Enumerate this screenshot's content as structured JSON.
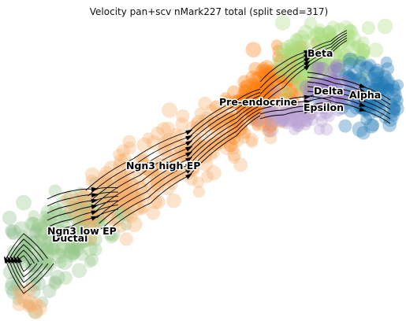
{
  "chart_data": {
    "type": "scatter",
    "title": "Velocity pan+scv nMark227 total (split seed=317)",
    "xlabel": "",
    "ylabel": "",
    "axes_visible": false,
    "grid": false,
    "legend": "on data",
    "overlay": "velocity streamlines with arrowheads",
    "clusters": [
      {
        "name": "Ductal",
        "color": "#8fbc8f"
      },
      {
        "name": "Ngn3 low EP",
        "color": "#98c98a"
      },
      {
        "name": "Ngn3 high EP",
        "color": "#f5b06c"
      },
      {
        "name": "Pre-endocrine",
        "color": "#ff7f0e"
      },
      {
        "name": "Beta",
        "color": "#a8dc7e"
      },
      {
        "name": "Alpha",
        "color": "#1f77b4"
      },
      {
        "name": "Delta",
        "color": "#9b7ec8"
      },
      {
        "name": "Epsilon",
        "color": "#b9a3d3"
      }
    ]
  }
}
